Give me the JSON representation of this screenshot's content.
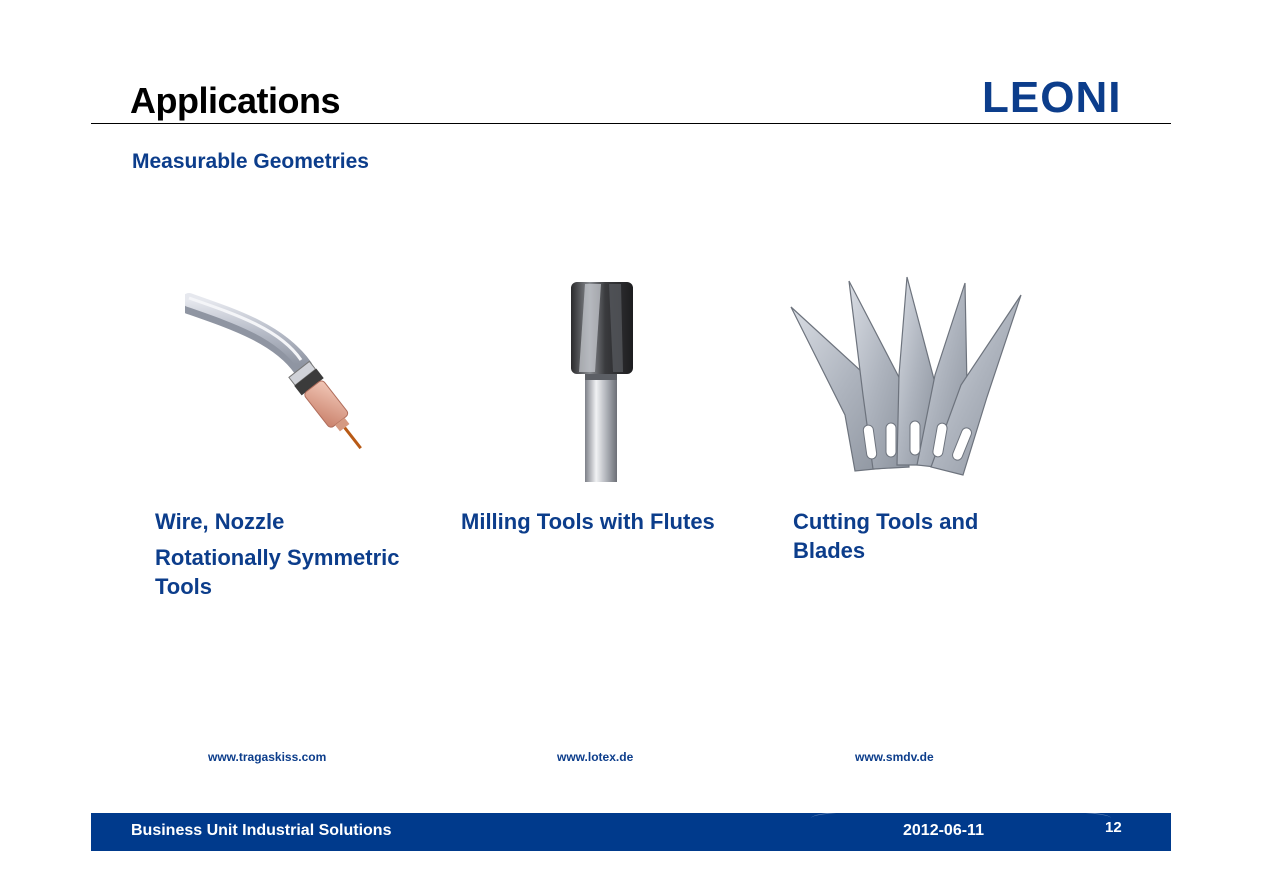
{
  "header": {
    "title": "Applications",
    "logo_text": "LEONI",
    "subtitle": "Measurable Geometries"
  },
  "items": [
    {
      "caption_lines": [
        "Wire, Nozzle",
        "Rotationally Symmetric Tools"
      ],
      "image_icon": "welding-torch-nozzle-image",
      "source_url": "www.tragaskiss.com"
    },
    {
      "caption_lines": [
        "Milling Tools with Flutes"
      ],
      "image_icon": "milling-cutter-image",
      "source_url": "www.lotex.de"
    },
    {
      "caption_lines": [
        "Cutting Tools and Blades"
      ],
      "image_icon": "hobby-blades-image",
      "source_url": "www.smdv.de"
    }
  ],
  "footer": {
    "unit": "Business Unit Industrial Solutions",
    "date": "2012-06-11",
    "page": "12"
  },
  "colors": {
    "brand_blue": "#0c3d8b",
    "footer_blue": "#003a8c"
  }
}
